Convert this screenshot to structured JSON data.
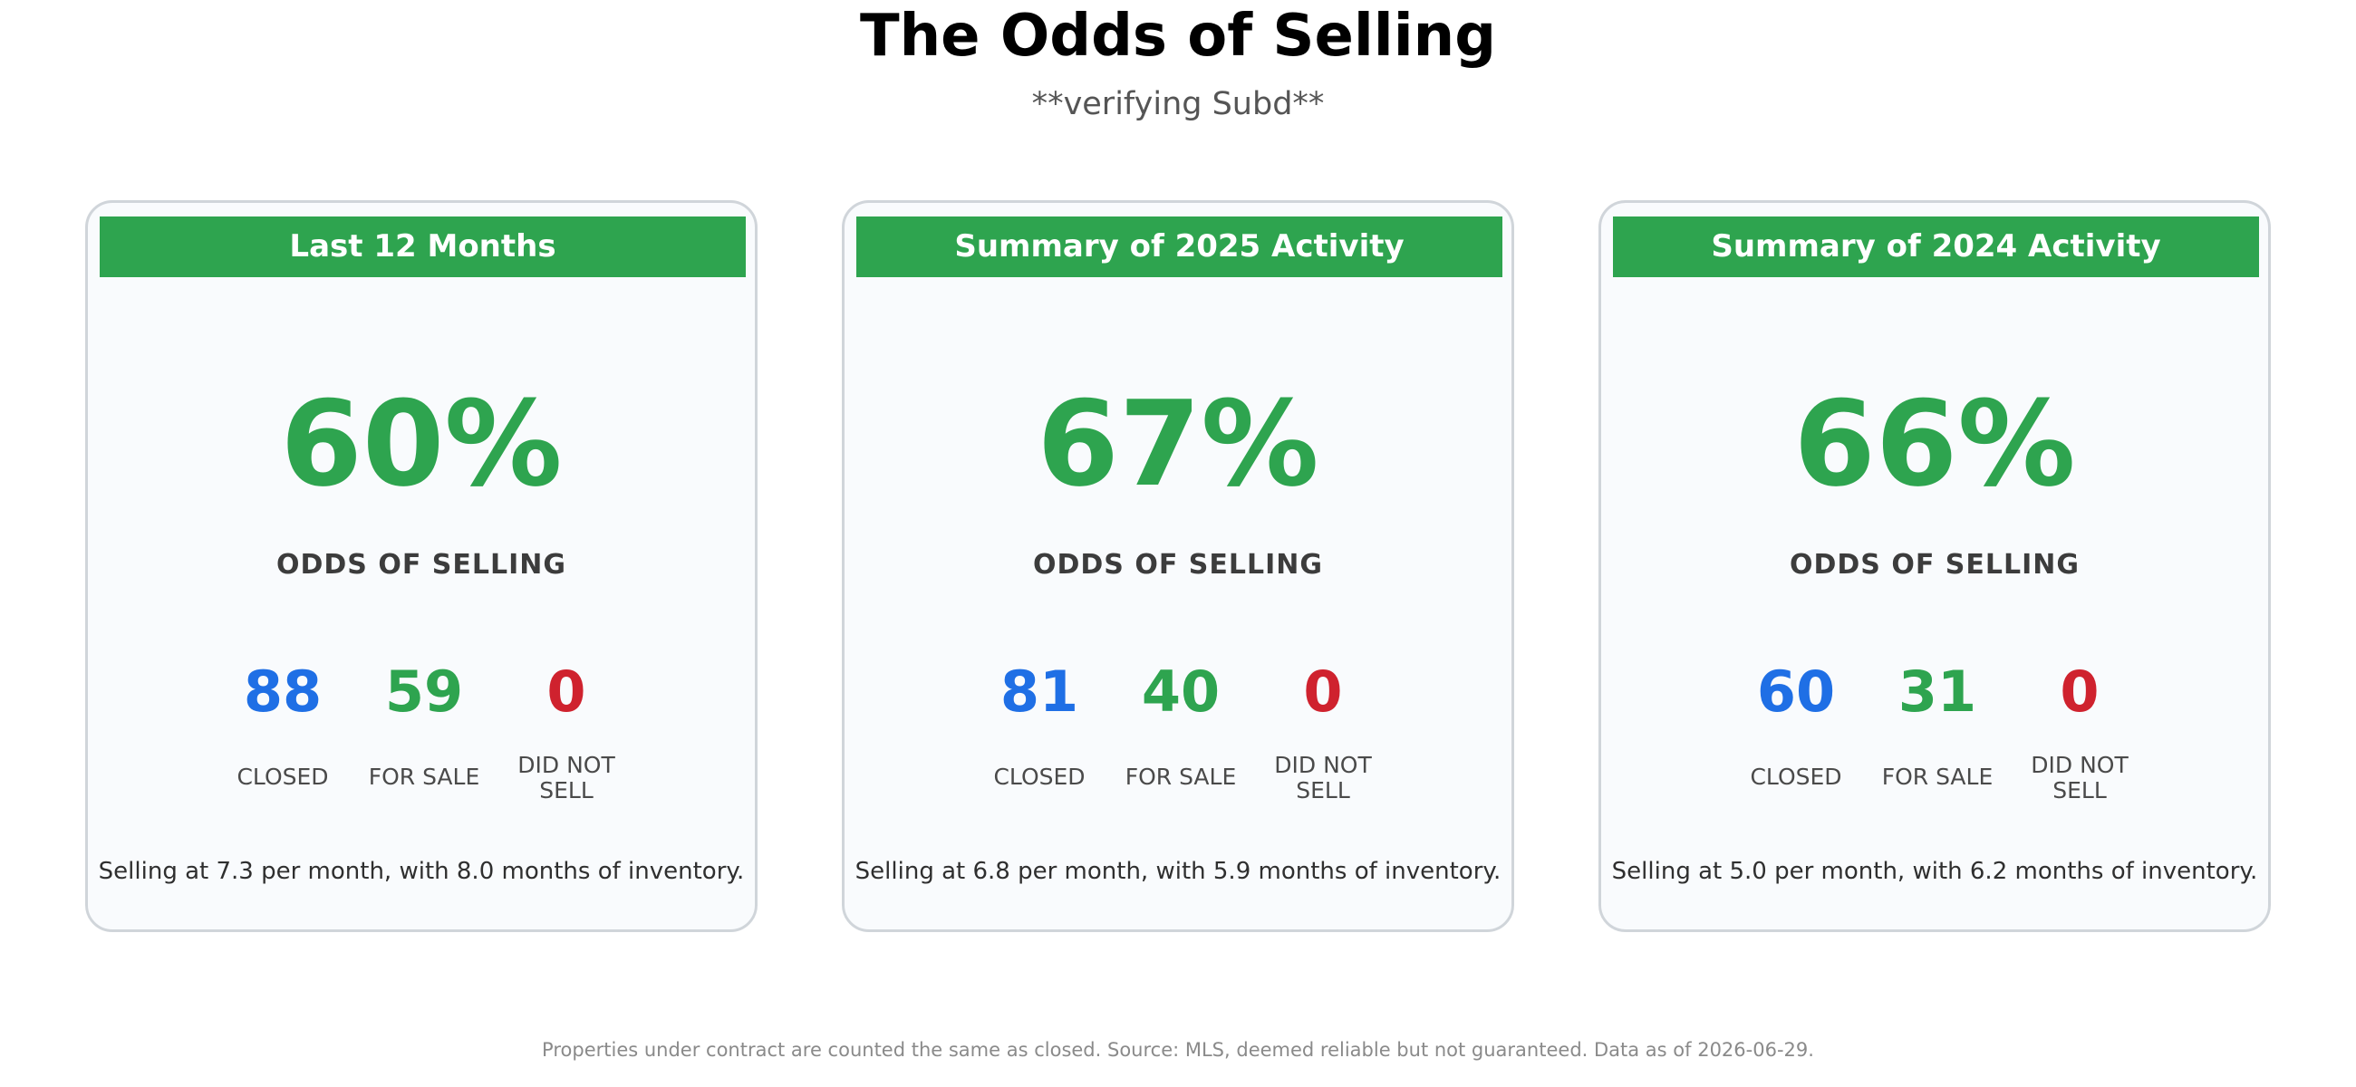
{
  "header": {
    "title": "The Odds of Selling",
    "subtitle": "**verifying Subd**"
  },
  "colors": {
    "accent_green": "#2ea44f",
    "closed_blue": "#1f6fe5",
    "did_not_sell_red": "#cf222e"
  },
  "cards": [
    {
      "heading": "Last 12 Months",
      "odds_pct": "60%",
      "odds_label": "ODDS OF SELLING",
      "closed": "88",
      "closed_label": "CLOSED",
      "for_sale": "59",
      "for_sale_label": "FOR SALE",
      "did_not_sell": "0",
      "did_not_sell_label_line1": "DID NOT",
      "did_not_sell_label_line2": "SELL",
      "summary": "Selling at 7.3 per month, with 8.0 months of inventory."
    },
    {
      "heading": "Summary of 2025 Activity",
      "odds_pct": "67%",
      "odds_label": "ODDS OF SELLING",
      "closed": "81",
      "closed_label": "CLOSED",
      "for_sale": "40",
      "for_sale_label": "FOR SALE",
      "did_not_sell": "0",
      "did_not_sell_label_line1": "DID NOT",
      "did_not_sell_label_line2": "SELL",
      "summary": "Selling at 6.8 per month, with 5.9 months of inventory."
    },
    {
      "heading": "Summary of 2024 Activity",
      "odds_pct": "66%",
      "odds_label": "ODDS OF SELLING",
      "closed": "60",
      "closed_label": "CLOSED",
      "for_sale": "31",
      "for_sale_label": "FOR SALE",
      "did_not_sell": "0",
      "did_not_sell_label_line1": "DID NOT",
      "did_not_sell_label_line2": "SELL",
      "summary": "Selling at 5.0 per month, with 6.2 months of inventory."
    }
  ],
  "footer": {
    "note": "Properties under contract are counted the same as closed. Source: MLS, deemed reliable but not guaranteed. Data as of 2026-06-29."
  }
}
